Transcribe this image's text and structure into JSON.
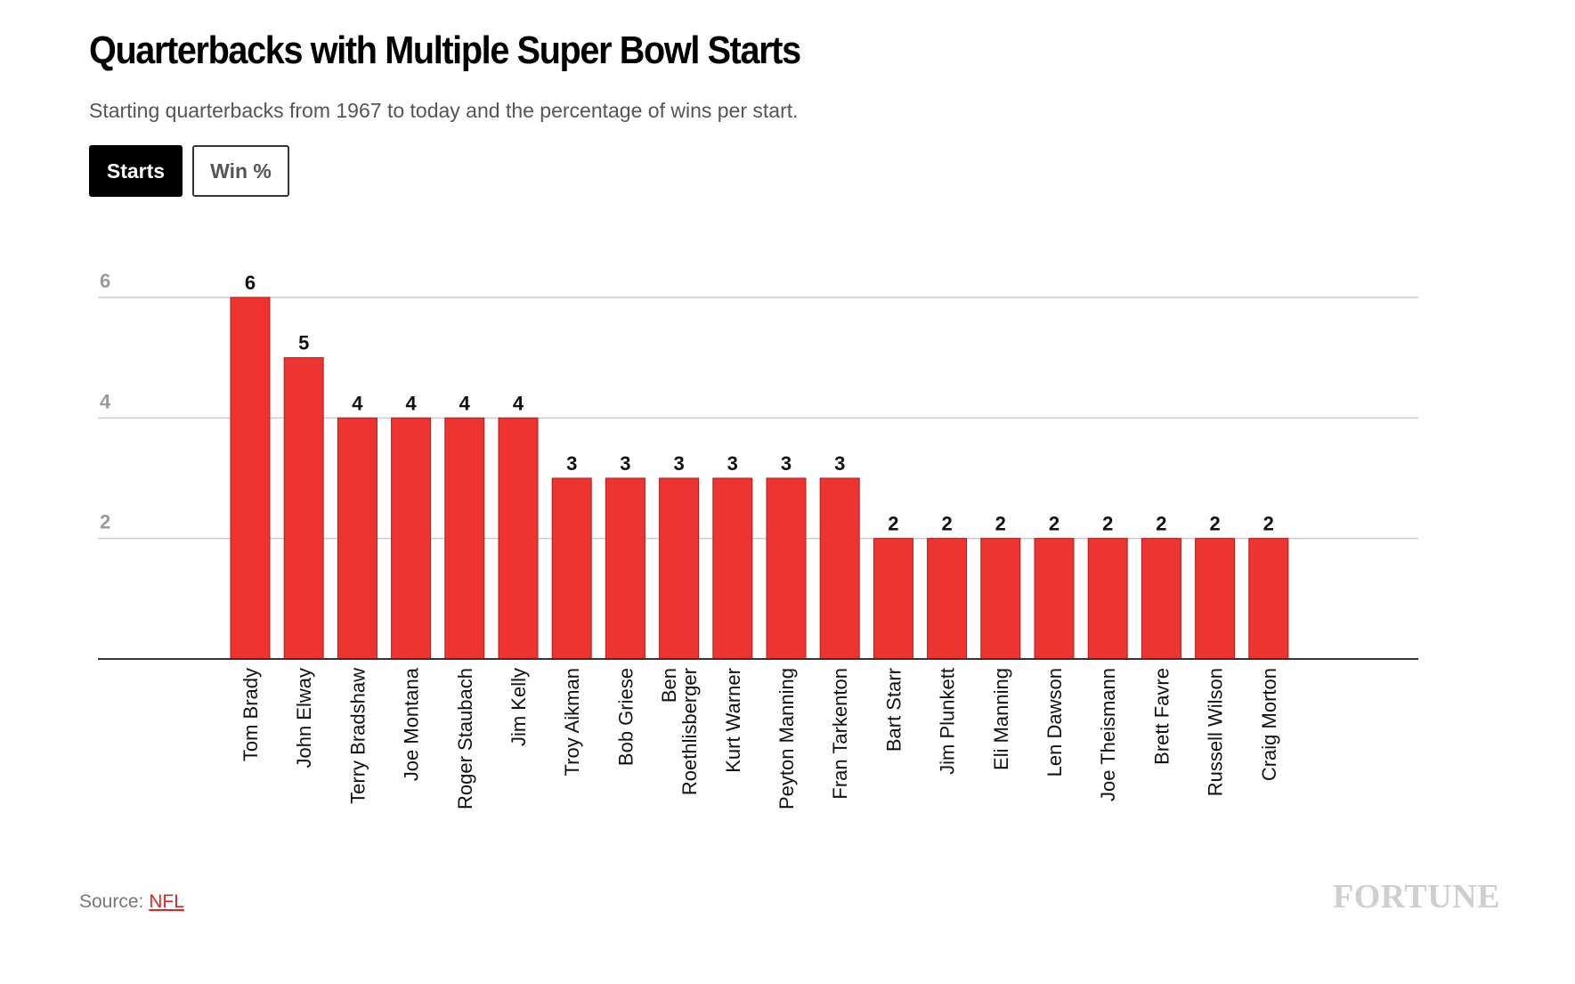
{
  "header": {
    "title": "Quarterbacks with Multiple Super Bowl Starts",
    "subtitle": "Starting quarterbacks from 1967 to today and the percentage of wins per start."
  },
  "tabs": [
    {
      "label": "Starts",
      "active": true
    },
    {
      "label": "Win %",
      "active": false
    }
  ],
  "chart_data": {
    "type": "bar",
    "title": "Quarterbacks with Multiple Super Bowl Starts",
    "xlabel": "",
    "ylabel": "",
    "ylim": [
      0,
      6
    ],
    "yticks": [
      2,
      4,
      6
    ],
    "grid": true,
    "bar_color": "#ee3430",
    "categories": [
      "Tom Brady",
      "John Elway",
      "Terry Bradshaw",
      "Joe Montana",
      "Roger Staubach",
      "Jim Kelly",
      "Troy Aikman",
      "Bob Griese",
      "Ben Roethlisberger",
      "Kurt Warner",
      "Peyton Manning",
      "Fran Tarkenton",
      "Bart Starr",
      "Jim Plunkett",
      "Eli Manning",
      "Len Dawson",
      "Joe Theismann",
      "Brett Favre",
      "Russell Wilson",
      "Craig Morton"
    ],
    "values": [
      6,
      5,
      4,
      4,
      4,
      4,
      3,
      3,
      3,
      3,
      3,
      3,
      2,
      2,
      2,
      2,
      2,
      2,
      2,
      2
    ]
  },
  "footer": {
    "source_prefix": "Source: ",
    "source_link": "NFL",
    "logo": "FORTUNE"
  },
  "colors": {
    "accent": "#ee3430",
    "link": "#e02525",
    "gridline": "#cccccc",
    "axis": "#333333"
  }
}
